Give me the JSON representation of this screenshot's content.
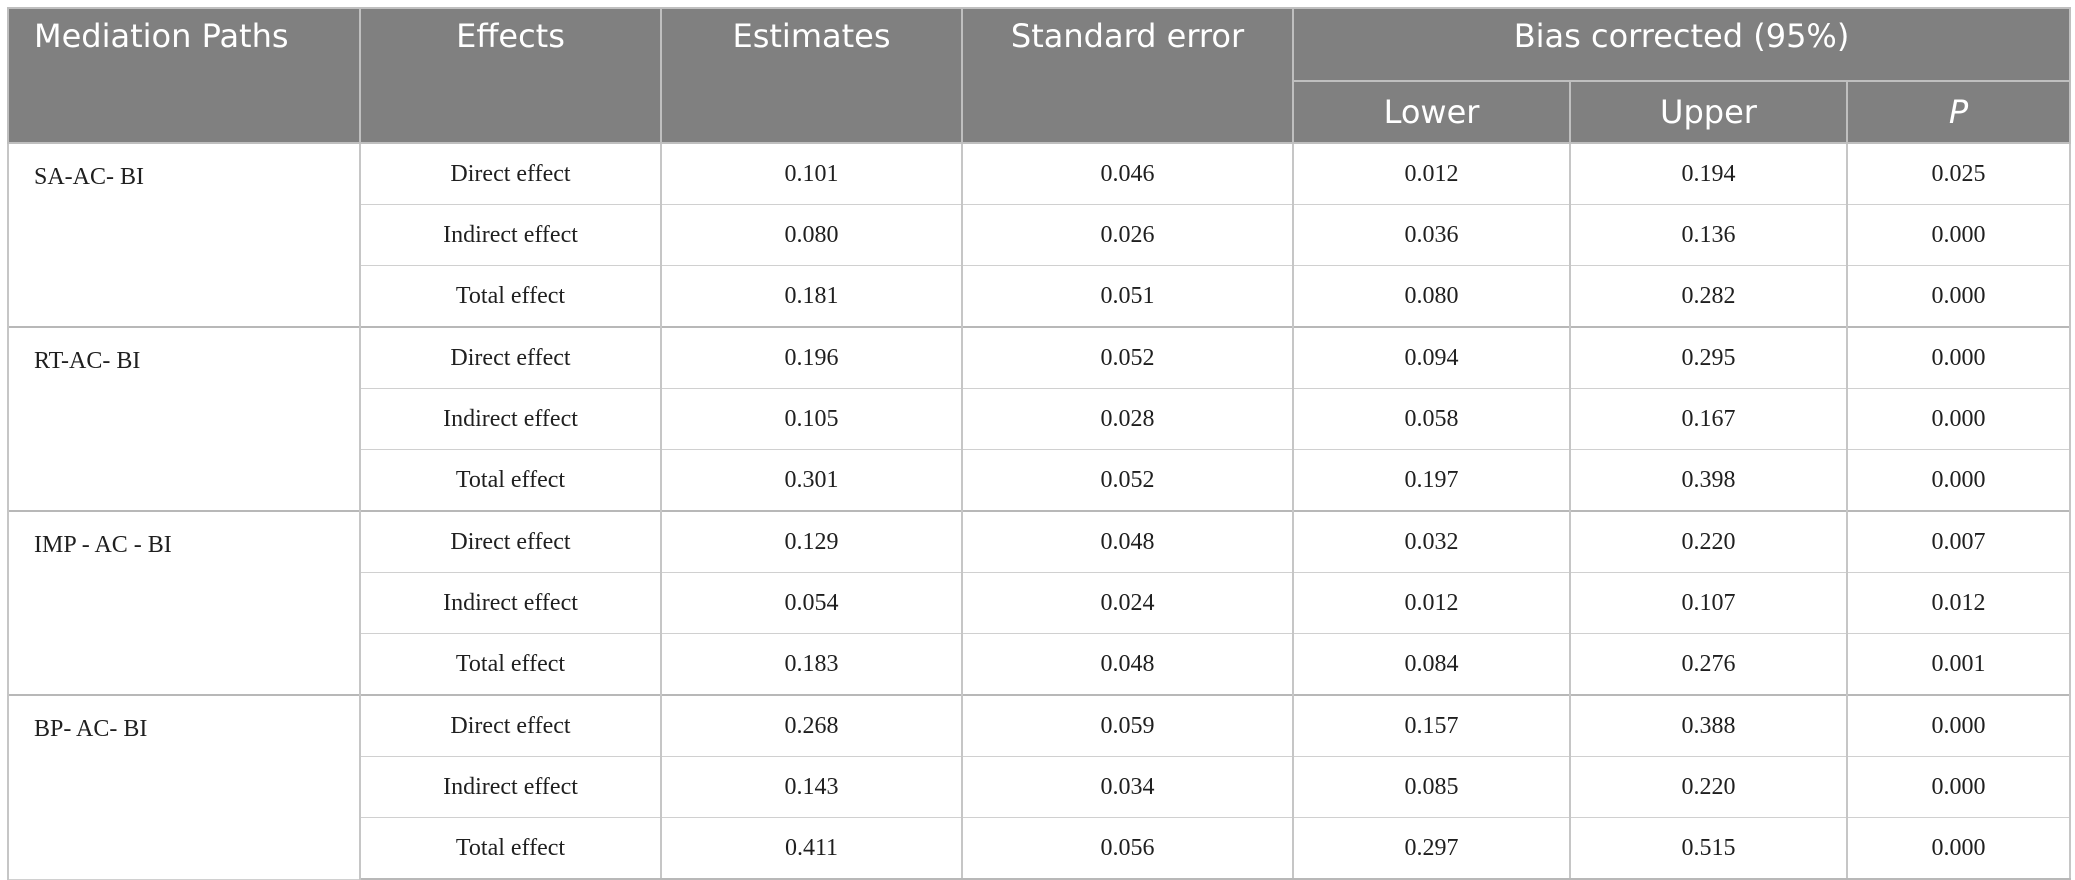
{
  "table": {
    "header_bg": "#808080",
    "header_fg": "#ffffff",
    "p_column_italic": true,
    "headers": {
      "paths": "Mediation Paths",
      "effects": "Effects",
      "estimates": "Estimates",
      "std_error": "Standard error",
      "bias": "Bias corrected (95%)",
      "lower": "Lower",
      "upper": "Upper",
      "p": "P"
    },
    "groups": [
      {
        "path": "SA-AC- BI",
        "rows": [
          {
            "effect": "Direct effect",
            "estimate": "0.101",
            "se": "0.046",
            "lower": "0.012",
            "upper": "0.194",
            "p": "0.025"
          },
          {
            "effect": "Indirect effect",
            "estimate": "0.080",
            "se": "0.026",
            "lower": "0.036",
            "upper": "0.136",
            "p": "0.000"
          },
          {
            "effect": "Total effect",
            "estimate": "0.181",
            "se": "0.051",
            "lower": "0.080",
            "upper": "0.282",
            "p": "0.000"
          }
        ]
      },
      {
        "path": "RT-AC- BI",
        "rows": [
          {
            "effect": "Direct effect",
            "estimate": "0.196",
            "se": "0.052",
            "lower": "0.094",
            "upper": "0.295",
            "p": "0.000"
          },
          {
            "effect": "Indirect effect",
            "estimate": "0.105",
            "se": "0.028",
            "lower": "0.058",
            "upper": "0.167",
            "p": "0.000"
          },
          {
            "effect": "Total effect",
            "estimate": "0.301",
            "se": "0.052",
            "lower": "0.197",
            "upper": "0.398",
            "p": "0.000"
          }
        ]
      },
      {
        "path": "IMP - AC - BI",
        "rows": [
          {
            "effect": "Direct effect",
            "estimate": "0.129",
            "se": "0.048",
            "lower": "0.032",
            "upper": "0.220",
            "p": "0.007"
          },
          {
            "effect": "Indirect effect",
            "estimate": "0.054",
            "se": "0.024",
            "lower": "0.012",
            "upper": "0.107",
            "p": "0.012"
          },
          {
            "effect": "Total effect",
            "estimate": "0.183",
            "se": "0.048",
            "lower": "0.084",
            "upper": "0.276",
            "p": "0.001"
          }
        ]
      },
      {
        "path": "BP- AC- BI",
        "rows": [
          {
            "effect": "Direct effect",
            "estimate": "0.268",
            "se": "0.059",
            "lower": "0.157",
            "upper": "0.388",
            "p": "0.000"
          },
          {
            "effect": "Indirect effect",
            "estimate": "0.143",
            "se": "0.034",
            "lower": "0.085",
            "upper": "0.220",
            "p": "0.000"
          },
          {
            "effect": "Total effect",
            "estimate": "0.411",
            "se": "0.056",
            "lower": "0.297",
            "upper": "0.515",
            "p": "0.000"
          }
        ]
      }
    ]
  }
}
